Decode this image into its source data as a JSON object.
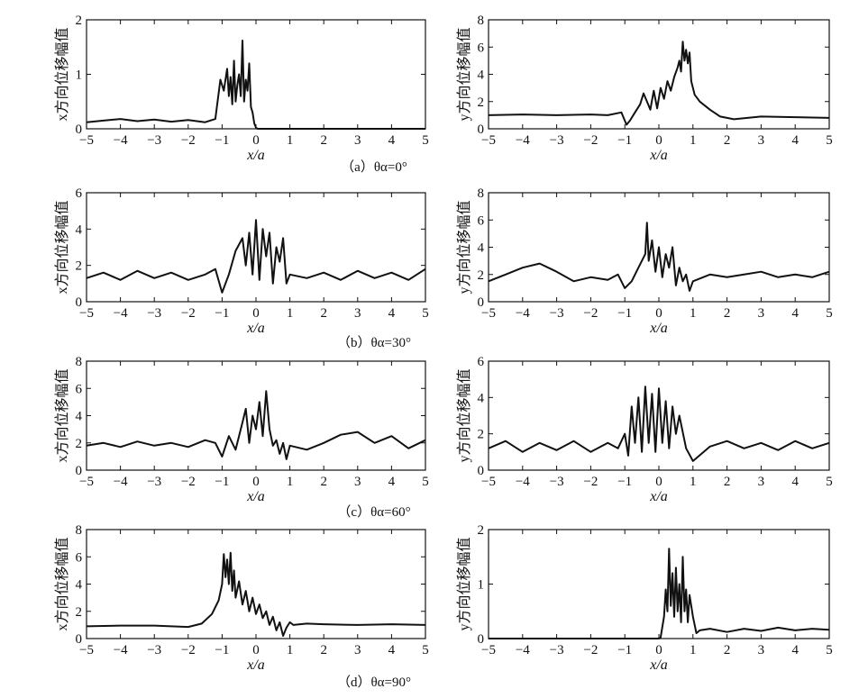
{
  "figure": {
    "rows": [
      {
        "caption": "（a）θα=0°"
      },
      {
        "caption": "（b）θα=30°"
      },
      {
        "caption": "（c）θα=60°"
      },
      {
        "caption": "（d）θα=90°"
      }
    ]
  },
  "chart_data": [
    {
      "type": "line",
      "xlabel": "x/a",
      "ylabel": "x方向位移幅值",
      "xlim": [
        -5,
        5
      ],
      "ylim": [
        0,
        2
      ],
      "xticks": [
        -5,
        -4,
        -3,
        -2,
        -1,
        0,
        1,
        2,
        3,
        4,
        5
      ],
      "yticks": [
        0,
        1,
        2
      ],
      "series": [
        {
          "x": [
            -5,
            -4.5,
            -4,
            -3.5,
            -3,
            -2.5,
            -2,
            -1.5,
            -1.2,
            -1.05,
            -0.95,
            -0.85,
            -0.8,
            -0.75,
            -0.7,
            -0.65,
            -0.6,
            -0.55,
            -0.5,
            -0.45,
            -0.4,
            -0.35,
            -0.3,
            -0.25,
            -0.2,
            -0.15,
            -0.1,
            -0.05,
            0,
            0.05,
            1,
            2,
            3,
            4,
            5
          ],
          "y": [
            0.12,
            0.15,
            0.18,
            0.14,
            0.17,
            0.13,
            0.16,
            0.12,
            0.18,
            0.9,
            0.7,
            1.1,
            0.6,
            0.95,
            0.45,
            1.25,
            0.5,
            0.8,
            1.0,
            0.6,
            1.62,
            0.5,
            0.9,
            0.7,
            1.2,
            0.4,
            0.3,
            0.1,
            0.02,
            0,
            0,
            0,
            0,
            0,
            0
          ]
        }
      ]
    },
    {
      "type": "line",
      "xlabel": "x/a",
      "ylabel": "y方向位移幅值",
      "xlim": [
        -5,
        5
      ],
      "ylim": [
        0,
        8
      ],
      "xticks": [
        -5,
        -4,
        -3,
        -2,
        -1,
        0,
        1,
        2,
        3,
        4,
        5
      ],
      "yticks": [
        0,
        2,
        4,
        6,
        8
      ],
      "series": [
        {
          "x": [
            -5,
            -4,
            -3,
            -2,
            -1.5,
            -1.1,
            -0.95,
            -0.85,
            -0.7,
            -0.55,
            -0.45,
            -0.35,
            -0.25,
            -0.15,
            -0.05,
            0.05,
            0.15,
            0.25,
            0.35,
            0.45,
            0.55,
            0.6,
            0.65,
            0.7,
            0.75,
            0.8,
            0.85,
            0.9,
            0.95,
            1.05,
            1.2,
            1.5,
            1.8,
            2.2,
            3,
            4,
            5
          ],
          "y": [
            1.0,
            1.05,
            1.0,
            1.05,
            1.0,
            1.2,
            0.3,
            0.6,
            1.2,
            1.8,
            2.6,
            2.0,
            1.4,
            2.8,
            1.5,
            3.0,
            2.2,
            3.5,
            2.8,
            3.8,
            4.5,
            5.0,
            4.2,
            6.4,
            5.0,
            5.8,
            4.8,
            5.6,
            3.5,
            2.5,
            2.0,
            1.4,
            0.9,
            0.7,
            0.9,
            0.85,
            0.8
          ]
        }
      ]
    },
    {
      "type": "line",
      "xlabel": "x/a",
      "ylabel": "x方向位移幅值",
      "xlim": [
        -5,
        5
      ],
      "ylim": [
        0,
        6
      ],
      "xticks": [
        -5,
        -4,
        -3,
        -2,
        -1,
        0,
        1,
        2,
        3,
        4,
        5
      ],
      "yticks": [
        0,
        2,
        4,
        6
      ],
      "series": [
        {
          "x": [
            -5,
            -4.5,
            -4,
            -3.5,
            -3,
            -2.5,
            -2,
            -1.5,
            -1.2,
            -1.0,
            -0.8,
            -0.6,
            -0.4,
            -0.3,
            -0.2,
            -0.1,
            0,
            0.1,
            0.2,
            0.3,
            0.4,
            0.5,
            0.6,
            0.7,
            0.8,
            0.9,
            1,
            1.5,
            2,
            2.5,
            3,
            3.5,
            4,
            4.5,
            5
          ],
          "y": [
            1.3,
            1.6,
            1.2,
            1.7,
            1.3,
            1.6,
            1.2,
            1.5,
            1.8,
            0.5,
            1.5,
            2.8,
            3.5,
            2.0,
            3.8,
            1.5,
            4.5,
            1.2,
            4.0,
            2.5,
            3.8,
            1.0,
            3.0,
            2.2,
            3.5,
            1.0,
            1.5,
            1.3,
            1.6,
            1.2,
            1.7,
            1.3,
            1.6,
            1.2,
            1.8
          ]
        }
      ]
    },
    {
      "type": "line",
      "xlabel": "x/a",
      "ylabel": "y方向位移幅值",
      "xlim": [
        -5,
        5
      ],
      "ylim": [
        0,
        8
      ],
      "xticks": [
        -5,
        -4,
        -3,
        -2,
        -1,
        0,
        1,
        2,
        3,
        4,
        5
      ],
      "yticks": [
        0,
        2,
        4,
        6,
        8
      ],
      "series": [
        {
          "x": [
            -5,
            -4.5,
            -4,
            -3.5,
            -3,
            -2.5,
            -2,
            -1.5,
            -1.2,
            -1.0,
            -0.8,
            -0.6,
            -0.4,
            -0.35,
            -0.3,
            -0.2,
            -0.1,
            0,
            0.1,
            0.2,
            0.3,
            0.4,
            0.5,
            0.6,
            0.7,
            0.8,
            0.9,
            1,
            1.5,
            2,
            2.5,
            3,
            3.5,
            4,
            4.5,
            5
          ],
          "y": [
            1.5,
            2.0,
            2.5,
            2.8,
            2.2,
            1.5,
            1.8,
            1.6,
            2.0,
            1.0,
            1.5,
            2.5,
            3.5,
            5.8,
            3.0,
            4.5,
            2.2,
            4.0,
            1.8,
            3.5,
            2.5,
            4.0,
            1.2,
            2.5,
            1.5,
            2.0,
            0.8,
            1.5,
            2.0,
            1.8,
            2.0,
            2.2,
            1.8,
            2.0,
            1.8,
            2.2
          ]
        }
      ]
    },
    {
      "type": "line",
      "xlabel": "x/a",
      "ylabel": "x方向位移幅值",
      "xlim": [
        -5,
        5
      ],
      "ylim": [
        0,
        8
      ],
      "xticks": [
        -5,
        -4,
        -3,
        -2,
        -1,
        0,
        1,
        2,
        3,
        4,
        5
      ],
      "yticks": [
        0,
        2,
        4,
        6,
        8
      ],
      "series": [
        {
          "x": [
            -5,
            -4.5,
            -4,
            -3.5,
            -3,
            -2.5,
            -2,
            -1.5,
            -1.2,
            -1.0,
            -0.8,
            -0.6,
            -0.4,
            -0.3,
            -0.2,
            -0.1,
            0,
            0.1,
            0.2,
            0.3,
            0.4,
            0.5,
            0.6,
            0.7,
            0.8,
            0.9,
            1,
            1.5,
            2,
            2.5,
            3,
            3.5,
            4,
            4.5,
            5
          ],
          "y": [
            1.8,
            2.0,
            1.7,
            2.1,
            1.8,
            2.0,
            1.7,
            2.2,
            2.0,
            1.0,
            2.5,
            1.5,
            3.5,
            4.5,
            2.0,
            4.0,
            3.0,
            5.0,
            2.5,
            5.8,
            3.0,
            1.8,
            2.2,
            1.2,
            2.0,
            0.8,
            1.8,
            1.5,
            2.0,
            2.6,
            2.8,
            2.0,
            2.5,
            1.6,
            2.2
          ]
        }
      ]
    },
    {
      "type": "line",
      "xlabel": "x/a",
      "ylabel": "y方向位移幅值",
      "xlim": [
        -5,
        5
      ],
      "ylim": [
        0,
        6
      ],
      "xticks": [
        -5,
        -4,
        -3,
        -2,
        -1,
        0,
        1,
        2,
        3,
        4,
        5
      ],
      "yticks": [
        0,
        2,
        4,
        6
      ],
      "series": [
        {
          "x": [
            -5,
            -4.5,
            -4,
            -3.5,
            -3,
            -2.5,
            -2,
            -1.5,
            -1.2,
            -1.0,
            -0.9,
            -0.8,
            -0.7,
            -0.6,
            -0.5,
            -0.4,
            -0.3,
            -0.2,
            -0.1,
            0,
            0.1,
            0.2,
            0.3,
            0.4,
            0.5,
            0.6,
            0.8,
            1,
            1.5,
            2,
            2.5,
            3,
            3.5,
            4,
            4.5,
            5
          ],
          "y": [
            1.2,
            1.6,
            1.0,
            1.5,
            1.1,
            1.6,
            1.0,
            1.5,
            1.2,
            2.0,
            0.8,
            3.5,
            1.5,
            4.0,
            1.0,
            4.6,
            1.5,
            4.2,
            1.0,
            4.5,
            1.5,
            3.8,
            1.2,
            3.5,
            2.0,
            3.0,
            1.2,
            0.5,
            1.3,
            1.6,
            1.2,
            1.5,
            1.1,
            1.6,
            1.2,
            1.5
          ]
        }
      ]
    },
    {
      "type": "line",
      "xlabel": "x/a",
      "ylabel": "x方向位移幅值",
      "xlim": [
        -5,
        5
      ],
      "ylim": [
        0,
        8
      ],
      "xticks": [
        -5,
        -4,
        -3,
        -2,
        -1,
        0,
        1,
        2,
        3,
        4,
        5
      ],
      "yticks": [
        0,
        2,
        4,
        6,
        8
      ],
      "series": [
        {
          "x": [
            -5,
            -4,
            -3,
            -2.5,
            -2,
            -1.6,
            -1.3,
            -1.1,
            -1.0,
            -0.95,
            -0.9,
            -0.85,
            -0.8,
            -0.75,
            -0.7,
            -0.65,
            -0.6,
            -0.5,
            -0.4,
            -0.3,
            -0.2,
            -0.1,
            0,
            0.1,
            0.2,
            0.3,
            0.4,
            0.5,
            0.6,
            0.7,
            0.8,
            0.9,
            1,
            1.1,
            1.5,
            2,
            3,
            4,
            5
          ],
          "y": [
            0.9,
            0.95,
            0.95,
            0.9,
            0.85,
            1.1,
            1.8,
            2.8,
            4.0,
            6.2,
            4.5,
            5.8,
            4.0,
            6.3,
            3.5,
            5.0,
            3.0,
            4.2,
            2.5,
            3.5,
            2.0,
            3.0,
            1.8,
            2.5,
            1.5,
            2.0,
            1.0,
            1.6,
            0.6,
            1.2,
            0.2,
            0.8,
            1.2,
            1.0,
            1.1,
            1.05,
            1.0,
            1.05,
            1.0
          ]
        }
      ]
    },
    {
      "type": "line",
      "xlabel": "x/a",
      "ylabel": "y方向位移幅值",
      "xlim": [
        -5,
        5
      ],
      "ylim": [
        0,
        2
      ],
      "xticks": [
        -5,
        -4,
        -3,
        -2,
        -1,
        0,
        1,
        2,
        3,
        4,
        5
      ],
      "yticks": [
        0,
        1,
        2
      ],
      "series": [
        {
          "x": [
            -5,
            -4,
            -3,
            -2,
            -1,
            0,
            0.05,
            0.15,
            0.2,
            0.25,
            0.3,
            0.35,
            0.4,
            0.45,
            0.5,
            0.55,
            0.6,
            0.65,
            0.7,
            0.75,
            0.8,
            0.85,
            0.9,
            0.95,
            1.0,
            1.1,
            1.2,
            1.5,
            2,
            2.5,
            3,
            3.5,
            4,
            4.5,
            5
          ],
          "y": [
            0,
            0,
            0,
            0,
            0,
            0,
            0.02,
            0.4,
            0.9,
            0.5,
            1.65,
            0.6,
            1.2,
            0.4,
            1.3,
            0.5,
            1.0,
            0.3,
            1.5,
            0.5,
            0.9,
            0.3,
            0.8,
            0.6,
            0.4,
            0.1,
            0.15,
            0.18,
            0.12,
            0.18,
            0.14,
            0.2,
            0.15,
            0.18,
            0.16
          ]
        }
      ]
    }
  ]
}
